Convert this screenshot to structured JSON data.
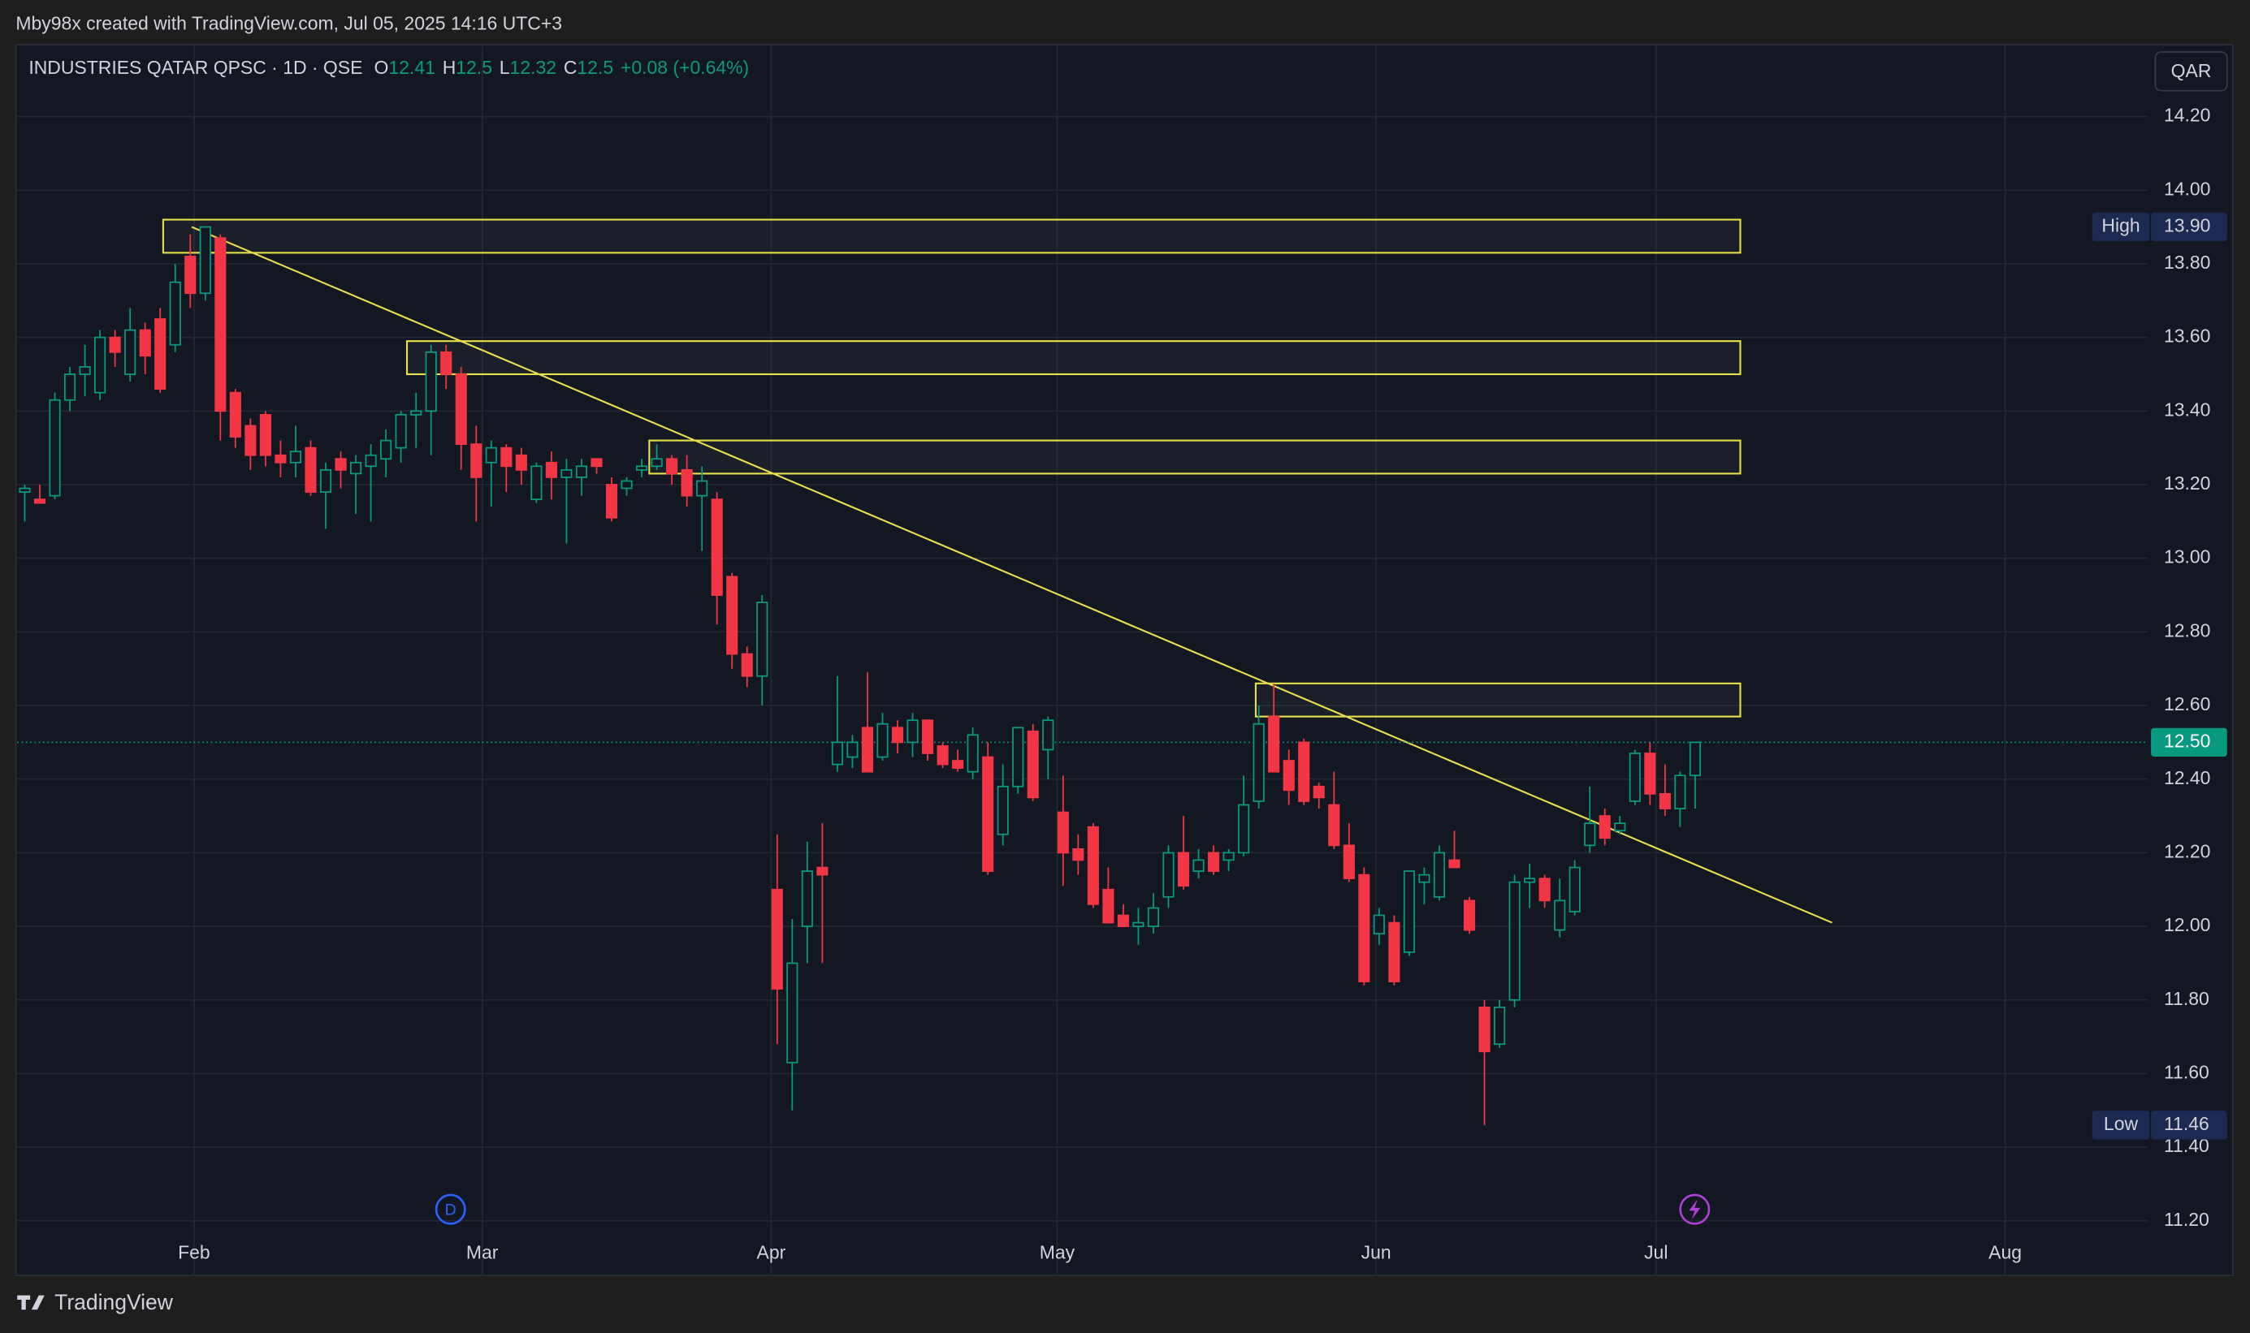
{
  "header": "Mby98x created with TradingView.com, Jul 05, 2025 14:16 UTC+3",
  "footer": "TradingView",
  "currency_button": "QAR",
  "event_markers": [
    "D"
  ],
  "chart_data": {
    "type": "candlestick",
    "title": "INDUSTRIES QATAR QPSC · 1D · QSE",
    "ohlc_legend": [
      {
        "label": "O",
        "value": 12.41
      },
      {
        "label": "H",
        "value": 12.5
      },
      {
        "label": "L",
        "value": 12.32
      },
      {
        "label": "C",
        "value": 12.5
      }
    ],
    "change": "+0.08 (+0.64%)",
    "up_color": "#089981",
    "down_color": "#f23645",
    "categories": [
      null,
      null,
      null,
      null,
      null,
      null,
      null,
      null,
      null,
      null,
      null,
      null,
      null,
      null,
      null,
      null,
      null,
      null,
      null,
      null,
      null,
      null,
      null,
      null,
      null,
      null,
      null,
      null,
      null,
      null,
      null,
      null,
      null,
      null,
      null,
      null,
      null,
      null,
      null,
      null,
      null,
      null,
      null,
      null,
      null,
      null,
      null,
      null,
      null,
      null,
      null,
      null,
      null,
      null,
      null,
      null,
      null,
      null,
      null,
      null,
      null,
      null,
      null,
      null,
      null,
      null,
      null,
      null,
      null,
      null,
      null,
      null,
      null,
      null,
      null,
      null,
      null,
      null,
      null,
      null,
      null,
      null,
      null,
      null,
      null,
      null,
      null,
      null,
      null,
      null,
      null,
      null,
      null,
      null,
      null,
      null,
      null,
      null,
      null,
      null,
      null,
      null,
      null,
      null,
      null,
      null,
      null,
      null,
      null,
      null,
      null,
      null
    ],
    "open": [
      13.18,
      13.16,
      13.17,
      13.43,
      13.5,
      13.45,
      13.6,
      13.5,
      13.62,
      13.65,
      13.58,
      13.82,
      13.72,
      13.87,
      13.45,
      13.36,
      13.39,
      13.28,
      13.26,
      13.3,
      13.18,
      13.27,
      13.23,
      13.25,
      13.27,
      13.3,
      13.39,
      13.4,
      13.56,
      13.5,
      13.31,
      13.26,
      13.3,
      13.28,
      13.16,
      13.26,
      13.22,
      13.22,
      13.27,
      13.2,
      13.19,
      13.24,
      13.25,
      13.27,
      13.24,
      13.17,
      13.16,
      12.95,
      12.74,
      12.68,
      12.1,
      11.63,
      12.0,
      12.16,
      12.44,
      12.46,
      12.54,
      12.46,
      12.54,
      12.5,
      12.56,
      12.49,
      12.45,
      12.42,
      12.46,
      12.25,
      12.38,
      12.53,
      12.48,
      12.31,
      12.21,
      12.27,
      12.1,
      12.03,
      12.0,
      12.0,
      12.08,
      12.2,
      12.15,
      12.2,
      12.18,
      12.2,
      12.34,
      12.57,
      12.45,
      12.5,
      12.38,
      12.33,
      12.22,
      12.14,
      11.98,
      12.01,
      11.93,
      12.12,
      12.08,
      12.18,
      12.07,
      11.78,
      11.68,
      11.8,
      12.12,
      12.13,
      11.99,
      12.04,
      12.22,
      12.3,
      12.26,
      12.34,
      12.47,
      12.36,
      12.32,
      12.41
    ],
    "high": [
      13.2,
      13.2,
      13.45,
      13.52,
      13.58,
      13.62,
      13.62,
      13.68,
      13.64,
      13.68,
      13.8,
      13.88,
      13.9,
      13.88,
      13.46,
      13.38,
      13.4,
      13.32,
      13.36,
      13.32,
      13.26,
      13.29,
      13.28,
      13.31,
      13.35,
      13.4,
      13.45,
      13.58,
      13.58,
      13.52,
      13.36,
      13.32,
      13.31,
      13.3,
      13.26,
      13.29,
      13.27,
      13.27,
      13.27,
      13.22,
      13.22,
      13.27,
      13.31,
      13.28,
      13.28,
      13.25,
      13.18,
      12.96,
      12.76,
      12.9,
      12.25,
      12.02,
      12.23,
      12.28,
      12.68,
      12.52,
      12.69,
      12.58,
      12.56,
      12.58,
      12.56,
      12.5,
      12.48,
      12.54,
      12.5,
      12.44,
      12.54,
      12.55,
      12.57,
      12.41,
      12.25,
      12.28,
      12.16,
      12.06,
      12.05,
      12.09,
      12.22,
      12.3,
      12.21,
      12.22,
      12.21,
      12.41,
      12.6,
      12.66,
      12.48,
      12.51,
      12.39,
      12.42,
      12.28,
      12.16,
      12.05,
      12.03,
      12.15,
      12.16,
      12.22,
      12.26,
      12.08,
      11.8,
      11.8,
      12.14,
      12.17,
      12.14,
      12.13,
      12.18,
      12.38,
      12.32,
      12.3,
      12.48,
      12.5,
      12.44,
      12.42,
      12.5
    ],
    "low": [
      13.1,
      13.15,
      13.16,
      13.4,
      13.44,
      13.43,
      13.52,
      13.48,
      13.5,
      13.45,
      13.56,
      13.68,
      13.7,
      13.32,
      13.3,
      13.24,
      13.25,
      13.22,
      13.22,
      13.17,
      13.08,
      13.19,
      13.12,
      13.1,
      13.22,
      13.26,
      13.3,
      13.28,
      13.46,
      13.24,
      13.1,
      13.14,
      13.18,
      13.2,
      13.15,
      13.16,
      13.04,
      13.17,
      13.23,
      13.1,
      13.17,
      13.22,
      13.24,
      13.2,
      13.14,
      13.02,
      12.82,
      12.7,
      12.65,
      12.6,
      11.68,
      11.5,
      11.9,
      11.9,
      12.42,
      12.43,
      12.42,
      12.45,
      12.47,
      12.46,
      12.45,
      12.43,
      12.42,
      12.4,
      12.14,
      12.22,
      12.36,
      12.34,
      12.4,
      12.11,
      12.14,
      12.05,
      12.01,
      12.0,
      11.95,
      11.98,
      12.05,
      12.1,
      12.13,
      12.14,
      12.15,
      12.19,
      12.32,
      12.43,
      12.33,
      12.33,
      12.32,
      12.21,
      12.12,
      11.84,
      11.95,
      11.84,
      11.92,
      12.06,
      12.07,
      12.16,
      11.98,
      11.46,
      11.67,
      11.78,
      12.05,
      12.05,
      11.97,
      12.03,
      12.2,
      12.22,
      12.25,
      12.33,
      12.33,
      12.3,
      12.27,
      12.32
    ],
    "close": [
      13.19,
      13.15,
      13.43,
      13.5,
      13.52,
      13.6,
      13.56,
      13.62,
      13.55,
      13.46,
      13.75,
      13.72,
      13.9,
      13.4,
      13.33,
      13.28,
      13.28,
      13.26,
      13.29,
      13.18,
      13.24,
      13.24,
      13.26,
      13.28,
      13.32,
      13.39,
      13.4,
      13.56,
      13.5,
      13.31,
      13.22,
      13.3,
      13.25,
      13.24,
      13.25,
      13.22,
      13.24,
      13.25,
      13.25,
      13.11,
      13.21,
      13.25,
      13.27,
      13.23,
      13.17,
      13.21,
      12.9,
      12.74,
      12.68,
      12.88,
      11.83,
      11.9,
      12.15,
      12.14,
      12.5,
      12.5,
      12.42,
      12.55,
      12.5,
      12.56,
      12.47,
      12.44,
      12.43,
      12.52,
      12.15,
      12.38,
      12.54,
      12.35,
      12.56,
      12.2,
      12.18,
      12.06,
      12.01,
      12.0,
      12.01,
      12.05,
      12.2,
      12.11,
      12.18,
      12.15,
      12.2,
      12.33,
      12.55,
      12.42,
      12.37,
      12.34,
      12.35,
      12.22,
      12.13,
      11.85,
      12.03,
      11.85,
      12.15,
      12.14,
      12.2,
      12.16,
      11.99,
      11.66,
      11.78,
      12.12,
      12.13,
      12.07,
      12.07,
      12.16,
      12.28,
      12.24,
      12.28,
      12.47,
      12.36,
      12.32,
      12.41,
      12.5
    ],
    "xlim": [
      -0.5,
      141.1
    ],
    "xticks": [
      {
        "value": 11.25,
        "label": "Feb"
      },
      {
        "value": 30.4,
        "label": "Mar"
      },
      {
        "value": 49.6,
        "label": "Apr"
      },
      {
        "value": 68.6,
        "label": "May"
      },
      {
        "value": 89.8,
        "label": "Jun"
      },
      {
        "value": 108.4,
        "label": "Jul"
      },
      {
        "value": 131.6,
        "label": "Aug"
      }
    ],
    "ylim": [
      11.165,
      14.395
    ],
    "yticks": [
      {
        "value": 11.2,
        "label": "11.20"
      },
      {
        "value": 11.4,
        "label": "11.40"
      },
      {
        "value": 11.6,
        "label": "11.60"
      },
      {
        "value": 11.8,
        "label": "11.80"
      },
      {
        "value": 12,
        "label": "12.00"
      },
      {
        "value": 12.2,
        "label": "12.20"
      },
      {
        "value": 12.4,
        "label": "12.40"
      },
      {
        "value": 12.6,
        "label": "12.60"
      },
      {
        "value": 12.8,
        "label": "12.80"
      },
      {
        "value": 13,
        "label": "13.00"
      },
      {
        "value": 13.2,
        "label": "13.20"
      },
      {
        "value": 13.4,
        "label": "13.40"
      },
      {
        "value": 13.6,
        "label": "13.60"
      },
      {
        "value": 13.8,
        "label": "13.80"
      },
      {
        "value": 14,
        "label": "14.00"
      },
      {
        "value": 14.2,
        "label": "14.20"
      }
    ],
    "grid": true,
    "last_price": {
      "value": 12.5,
      "label": "12.50"
    },
    "high_marker": {
      "label": "High",
      "value": 13.9,
      "value_label": "13.90"
    },
    "low_marker": {
      "label": "Low",
      "value": 11.46,
      "value_label": "11.46"
    },
    "zone_color": "#e8e04a",
    "zones": [
      {
        "x": [
          9.2,
          114
        ],
        "y": [
          13.83,
          13.92
        ]
      },
      {
        "x": [
          25.4,
          114
        ],
        "y": [
          13.5,
          13.59
        ]
      },
      {
        "x": [
          41.5,
          114
        ],
        "y": [
          13.23,
          13.32
        ]
      },
      {
        "x": [
          81.8,
          114
        ],
        "y": [
          12.57,
          12.66
        ]
      }
    ],
    "trendline": {
      "x": [
        11.1,
        120.1
      ],
      "y": [
        13.9,
        12.01
      ]
    }
  }
}
